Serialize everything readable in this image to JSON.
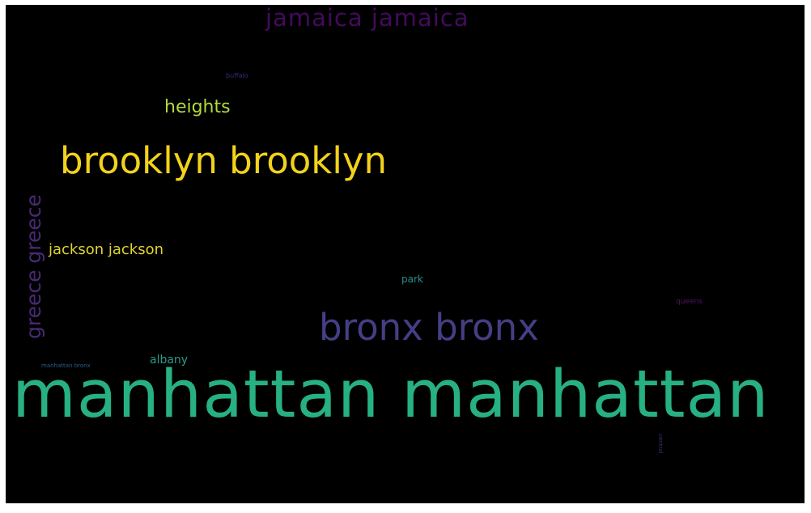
{
  "wordcloud": {
    "background": "#000000",
    "words": [
      {
        "id": "jamaica",
        "text": "jamaica jamaica",
        "color": "#440a5c"
      },
      {
        "id": "buffalo",
        "text": "buffalo",
        "color": "#3b2a78"
      },
      {
        "id": "heights",
        "text": "heights",
        "color": "#b3d93a"
      },
      {
        "id": "brooklyn",
        "text": "brooklyn brooklyn",
        "color": "#f2d21b"
      },
      {
        "id": "greece",
        "text": "greece greece",
        "color": "#482a74"
      },
      {
        "id": "jackson",
        "text": "jackson jackson",
        "color": "#e0d431"
      },
      {
        "id": "park",
        "text": "park",
        "color": "#2b8f8a"
      },
      {
        "id": "queens",
        "text": "queens",
        "color": "#4a1860"
      },
      {
        "id": "bronx",
        "text": "bronx bronx",
        "color": "#443f85"
      },
      {
        "id": "manhattan-bronx",
        "text": "manhattan bronx",
        "color": "#2a5e8a"
      },
      {
        "id": "albany",
        "text": "albany",
        "color": "#2a9a86"
      },
      {
        "id": "manhattan",
        "text": "manhattan manhattan",
        "color": "#27b083"
      },
      {
        "id": "central",
        "text": "central",
        "color": "#3b2f78"
      }
    ]
  }
}
